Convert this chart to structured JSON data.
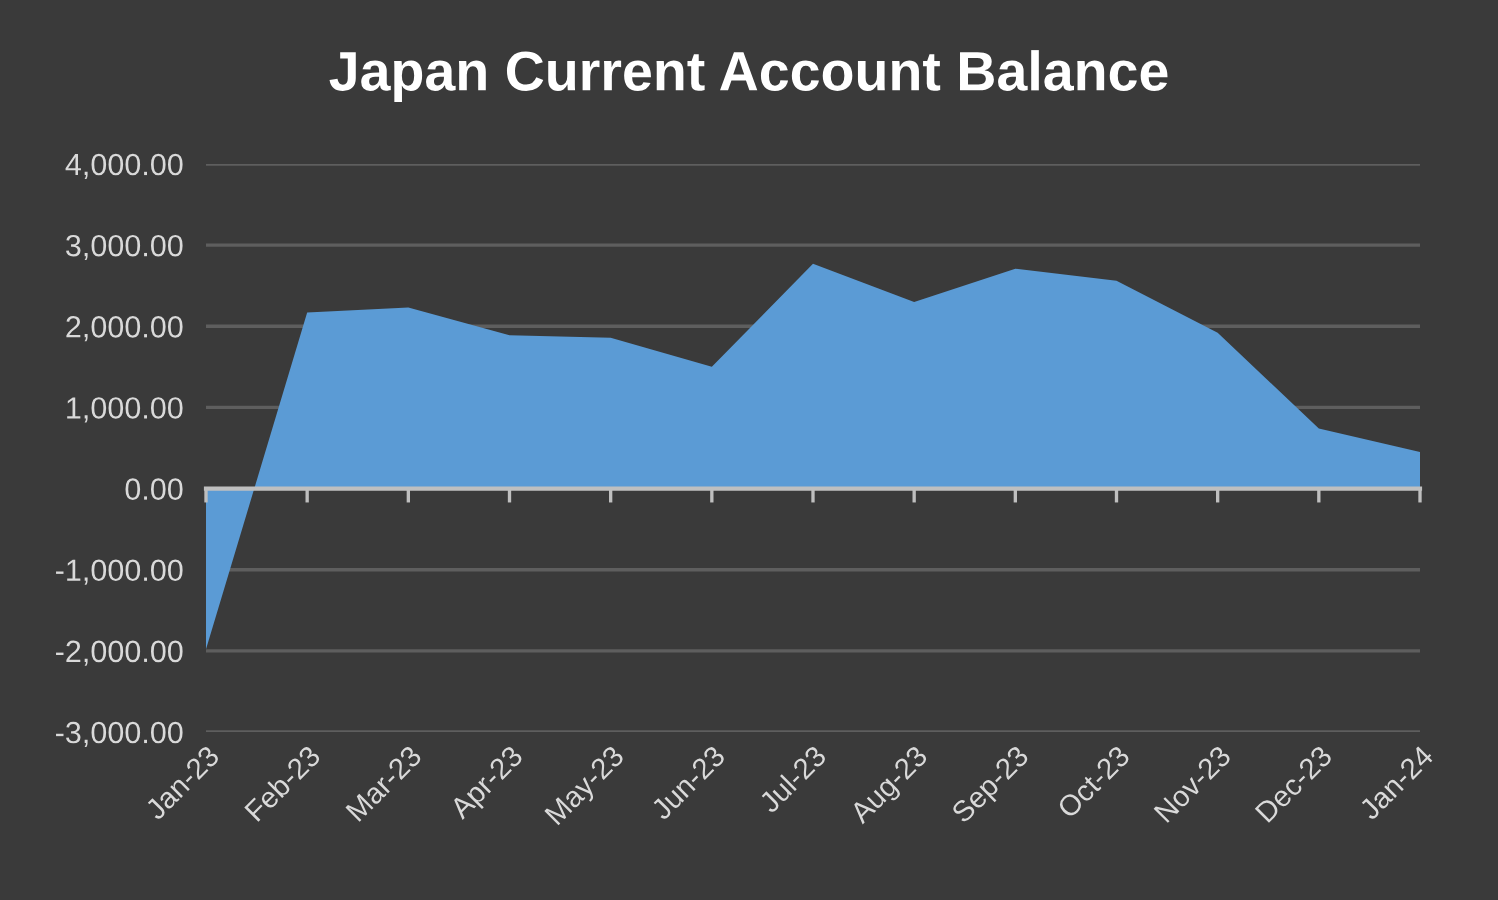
{
  "chart_data": {
    "type": "area",
    "title": "Japan Current Account Balance",
    "categories": [
      "Jan-23",
      "Feb-23",
      "Mar-23",
      "Apr-23",
      "May-23",
      "Jun-23",
      "Jul-23",
      "Aug-23",
      "Sep-23",
      "Oct-23",
      "Nov-23",
      "Dec-23",
      "Jan-24"
    ],
    "values": [
      -1980,
      2170,
      2230,
      1890,
      1860,
      1500,
      2770,
      2300,
      2710,
      2560,
      1920,
      740,
      450
    ],
    "color": "#5b9bd5",
    "ylim": [
      -3000,
      4000
    ],
    "yticks": [
      {
        "value": -3000,
        "label": "-3,000.00"
      },
      {
        "value": -2000,
        "label": "-2,000.00"
      },
      {
        "value": -1000,
        "label": "-1,000.00"
      },
      {
        "value": 0,
        "label": "0.00"
      },
      {
        "value": 1000,
        "label": "1,000.00"
      },
      {
        "value": 2000,
        "label": "2,000.00"
      },
      {
        "value": 3000,
        "label": "3,000.00"
      },
      {
        "value": 4000,
        "label": "4,000.00"
      }
    ],
    "grid": "y"
  }
}
